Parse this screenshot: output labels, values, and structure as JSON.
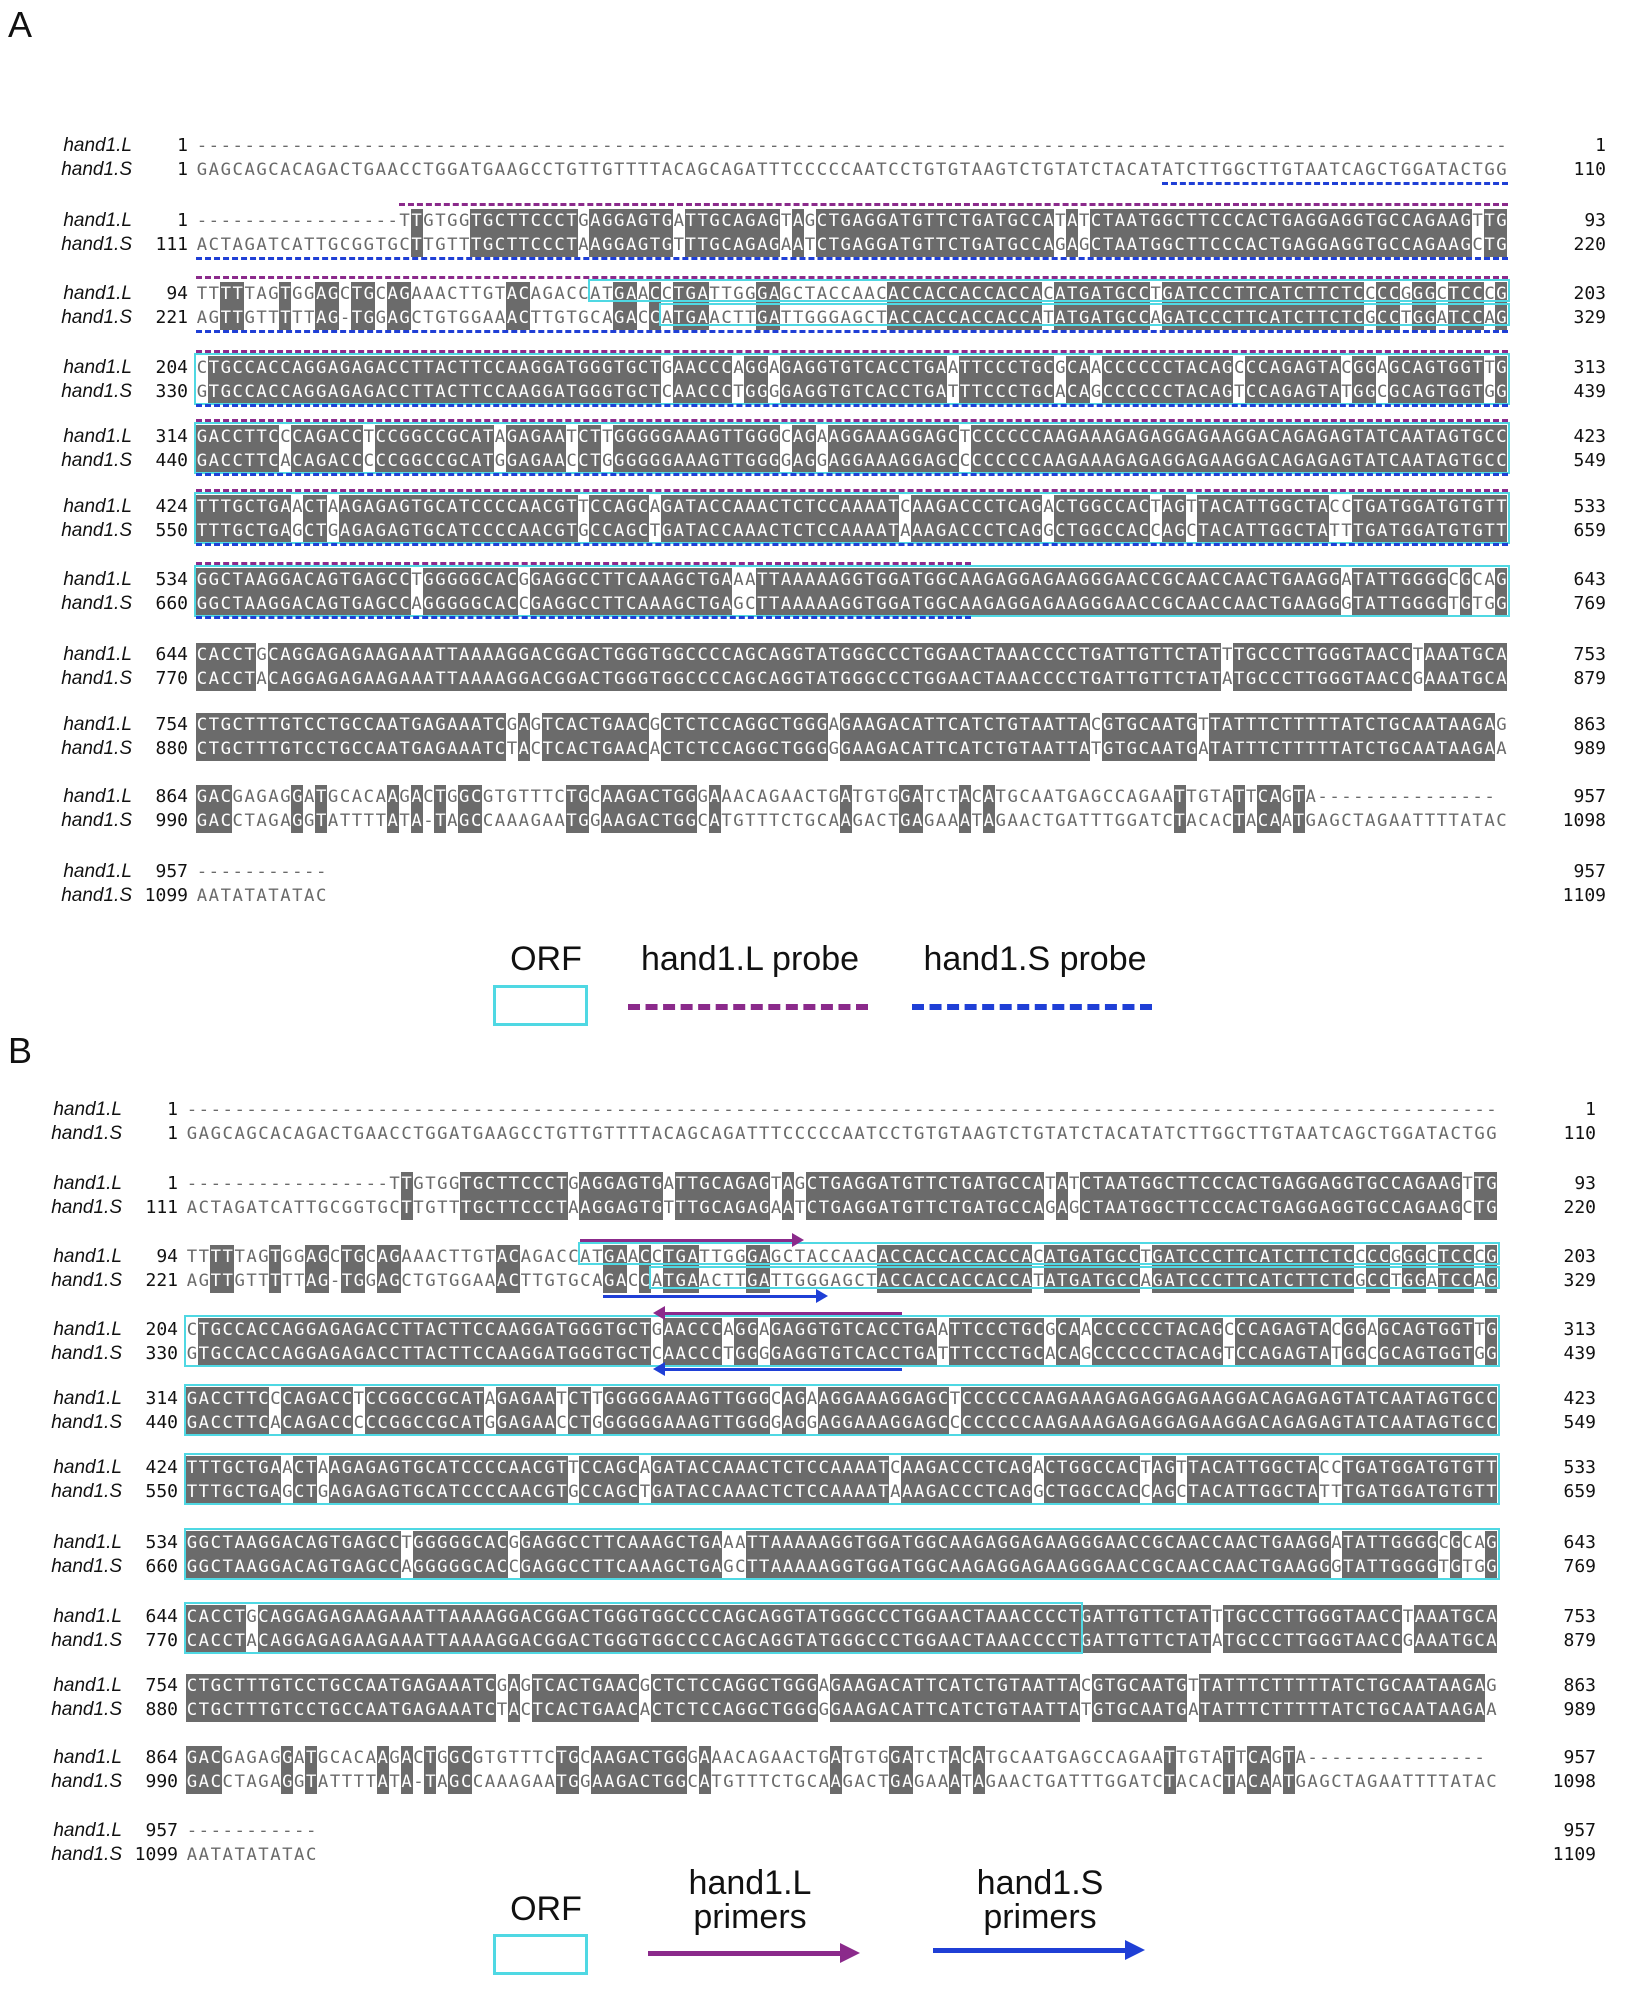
{
  "panels": [
    {
      "label": "A",
      "legend": {
        "orf": "ORF",
        "l_item": "hand1.L probe",
        "s_item": "hand1.S probe"
      }
    },
    {
      "label": "B",
      "legend": {
        "orf": "ORF",
        "l_item_line1": "hand1.L",
        "l_item_line2": "primers",
        "s_item_line1": "hand1.S",
        "s_item_line2": "primers"
      }
    }
  ],
  "seq_names": {
    "L": "hand1.L",
    "S": "hand1.S"
  },
  "blocks": [
    {
      "L": {
        "start": "1",
        "seq": "--------------------------------------------------------------------------------------------------------------",
        "end": "1"
      },
      "S": {
        "start": "1",
        "seq": "GAGCAGCACAGACTGAACCTGGATGAAGCCTGTTGTTTTACAGCAGATTTCCCCCAATCCTGTGTAAGTCTGTATCTACATATCTTGGCTTGTAATCAGCTGGATACTGG",
        "end": "110"
      }
    },
    {
      "L": {
        "start": "1",
        "seq": "-----------------TTGTGGTGCTTCCCTGAGGAGTGATTGCAGAGTAGCTGAGGATGTTCTGATGCCATATCTAATGGCTTCCCACTGAGGAGGTGCCAGAAGTTG",
        "end": "93"
      },
      "S": {
        "start": "111",
        "seq": "ACTAGATCATTGCGGTGCTTGTTTGCTTCCCTAAGGAGTGTTTGCAGAGAATCTGAGGATGTTCTGATGCCAGAGCTAATGGCTTCCCACTGAGGAGGTGCCAGAAGCTG",
        "end": "220"
      }
    },
    {
      "L": {
        "start": "94",
        "seq": "TTTTTAGTGGAGCTGCAGAAACTTGTACAGACCATGAACCTGATTGGGAGCTACCAACACCACCACCACCACATGATGCCTGATCCCTTCATCTTCTCCCCGGGCTCCCG",
        "end": "203"
      },
      "S": {
        "start": "221",
        "seq": "AGTTGTTTTTAG-TGGAGCTGTGGAAACTTGTGCAGACCATGAACTTGATTGGGAGCTACCACCACCACCATATGATGCCAGATCCCTTCATCTTCTCGCCTGGATCCAG",
        "end": "329"
      }
    },
    {
      "L": {
        "start": "204",
        "seq": "CTGCCACCAGGAGAGACCTTACTTCCAAGGATGGGTGCTGAACCCAGGAGAGGTGTCACCTGAATTCCCTGCGCAACCCCCCTACAGCCCAGAGTACGGAGCAGTGGTTG",
        "end": "313"
      },
      "S": {
        "start": "330",
        "seq": "GTGCCACCAGGAGAGACCTTACTTCCAAGGATGGGTGCTCAACCCTGGGGAGGTGTCACCTGATTTCCCTGCACAGCCCCCCTACAGTCCAGAGTATGGCGCAGTGGTGG",
        "end": "439"
      }
    },
    {
      "L": {
        "start": "314",
        "seq": "GACCTTCCCAGACCTCCGGCCGCATAGAGAATCTTGGGGGAAAGTTGGGCAGAAGGAAAGGAGCTCCCCCCAAGAAAGAGAGGAGAAGGACAGAGAGTATCAATAGTGCC",
        "end": "423"
      },
      "S": {
        "start": "440",
        "seq": "GACCTTCACAGACCCCCGGCCGCATGGAGAACCTGGGGGGAAAGTTGGGGAGGAGGAAAGGAGCCCCCCCCAAGAAAGAGAGGAGAAGGACAGAGAGTATCAATAGTGCC",
        "end": "549"
      }
    },
    {
      "L": {
        "start": "424",
        "seq": "TTTGCTGAACTAAGAGAGTGCATCCCCAACGTTCCAGCAGATACCAAACTCTCCAAAATCAAGACCCTCAGACTGGCCACTAGTTACATTGGCTACCTGATGGATGTGTT",
        "end": "533"
      },
      "S": {
        "start": "550",
        "seq": "TTTGCTGAGCTGAGAGAGTGCATCCCCAACGTGCCAGCTGATACCAAACTCTCCAAAATAAAGACCCTCAGGCTGGCCACCAGCTACATTGGCTATTTGATGGATGTGTT",
        "end": "659"
      }
    },
    {
      "L": {
        "start": "534",
        "seq": "GGCTAAGGACAGTGAGCCTGGGGGCACGGAGGCCTTCAAAGCTGAAATTAAAAAGGTGGATGGCAAGAGGAGAAGGGAACCGCAACCAACTGAAGGATATTGGGGCGCAG",
        "end": "643"
      },
      "S": {
        "start": "660",
        "seq": "GGCTAAGGACAGTGAGCCAGGGGGCACCGAGGCCTTCAAAGCTGAGCTTAAAAAGGTGGATGGCAAGAGGAGAAGGGAACCGCAACCAACTGAAGGGTATTGGGGTGTGG",
        "end": "769"
      }
    },
    {
      "L": {
        "start": "644",
        "seq": "CACCTGCAGGAGAGAAGAAATTAAAAGGACGGACTGGGTGGCCCCAGCAGGTATGGGCCCTGGAACTAAACCCCTGATTGTTCTATTTGCCCTTGGGTAACCTAAATGCA",
        "end": "753"
      },
      "S": {
        "start": "770",
        "seq": "CACCTACAGGAGAGAAGAAATTAAAAGGACGGACTGGGTGGCCCCAGCAGGTATGGGCCCTGGAACTAAACCCCTGATTGTTCTATATGCCCTTGGGTAACCGAAATGCA",
        "end": "879"
      }
    },
    {
      "L": {
        "start": "754",
        "seq": "CTGCTTTGTCCTGCCAATGAGAAATCGAGTCACTGAACGCTCTCCAGGCTGGGAGAAGACATTCATCTGTAATTACGTGCAATGTTATTTCTTTTTATCTGCAATAAGAG",
        "end": "863"
      },
      "S": {
        "start": "880",
        "seq": "CTGCTTTGTCCTGCCAATGAGAAATCTACTCACTGAACACTCTCCAGGCTGGGGGAAGACATTCATCTGTAATTATGTGCAATGATATTTCTTTTTATCTGCAATAAGAA",
        "end": "989"
      }
    },
    {
      "L": {
        "start": "864",
        "seq": "GACGAGAGGATGCACAAGACTGGCGTGTTTCTGCAAGACTGGGAAACAGAACTGATGTGGATCTACATGCAATGAGCCAGAATTGTATTCAGTA---------------",
        "end": "957"
      },
      "S": {
        "start": "990",
        "seq": "GACCTAGAGGTATTTTATA-TAGCCAAAGAATGGAAGACTGGCATGTTTCTGCAAGACTGAGAAATAGAACTGATTTGGATCTACACTACAATGAGCTAGAATTTTATAC",
        "end": "1098"
      }
    },
    {
      "L": {
        "start": "957",
        "seq": "-----------",
        "end": "957"
      },
      "S": {
        "start": "1099",
        "seq": "AATATATATAC",
        "end": "1109"
      }
    }
  ]
}
